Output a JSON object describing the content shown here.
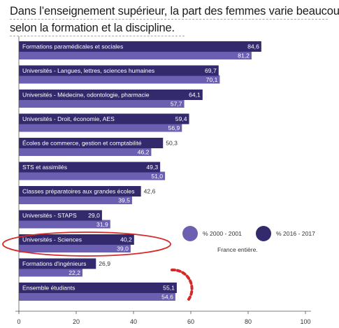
{
  "title_line1": "Dans l’enseignement supérieur, la part des femmes varie beaucoup",
  "title_line2": "selon la formation   et la discipline.",
  "colors": {
    "dark": "#332a6e",
    "light": "#6a5fb1",
    "highlight": "#d42a2a"
  },
  "chart_data": {
    "type": "bar",
    "orientation": "horizontal",
    "categories": [
      "Formations paramédicales et sociales",
      "Universités - Langues, lettres, sciences humaines",
      "Universités - Médecine, odontologie, pharmacie",
      "Universités - Droit, économie, AES",
      "Écoles de commerce, gestion et comptabilité",
      "STS et assimilés",
      "Classes préparatoires aux grandes écoles",
      "Universités - STAPS",
      "Universités - Sciences",
      "Formations d'ingénieurs",
      "Ensemble étudiants"
    ],
    "series": [
      {
        "name": "% 2016 - 2017",
        "values": [
          84.6,
          69.7,
          64.1,
          59.4,
          50.3,
          49.3,
          42.6,
          29.0,
          40.2,
          26.9,
          55.1
        ],
        "labels": [
          "84,6",
          "69,7",
          "64,1",
          "59,4",
          "50,3",
          "49,3",
          "42,6",
          "29,0",
          "40,2",
          "26,9",
          "55,1"
        ]
      },
      {
        "name": "% 2000 - 2001",
        "values": [
          81.2,
          70.1,
          57.7,
          56.9,
          46.2,
          51.0,
          39.5,
          31.9,
          39.0,
          22.2,
          54.6
        ],
        "labels": [
          "81,2",
          "70,1",
          "57,7",
          "56,9",
          "46,2",
          "51,0",
          "39,5",
          "31,9",
          "39,0",
          "22,2",
          "54,6"
        ]
      }
    ],
    "xlim": [
      0,
      100
    ],
    "xticks": [
      "0",
      "20",
      "40",
      "60",
      "80",
      "100"
    ],
    "legend": {
      "items": [
        "% 2000 - 2001",
        "% 2016 - 2017"
      ],
      "note": "France entière.",
      "placement": "right"
    },
    "highlighted_category": "Universités - Sciences"
  }
}
